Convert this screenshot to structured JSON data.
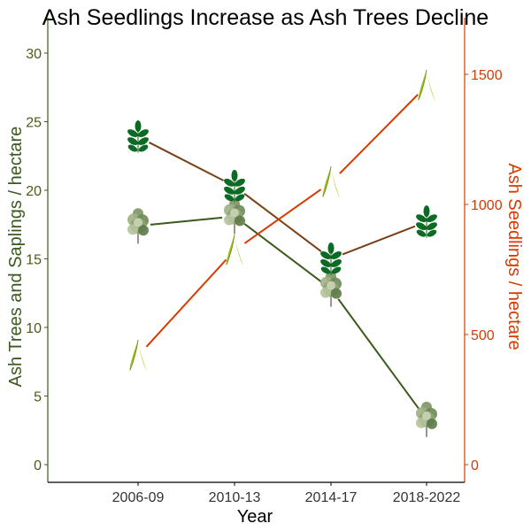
{
  "chart_data": {
    "type": "line",
    "title": "Ash Seedlings Increase as Ash Trees Decline",
    "xlabel": "Year",
    "ylabel_left": "Ash Trees and Saplings / hectare",
    "ylabel_right": "Ash Seedlings / hectare",
    "categories": [
      "2006-09",
      "2010-13",
      "2014-17",
      "2018-2022"
    ],
    "ylim_left": [
      0,
      30
    ],
    "yticks_left": [
      0,
      5,
      10,
      15,
      20,
      25,
      30
    ],
    "ylim_right": [
      0,
      1500
    ],
    "yticks_right": [
      0,
      500,
      1000,
      1500
    ],
    "grid": false,
    "series": [
      {
        "key": "trees",
        "axis": "left",
        "marker": "tree-icon",
        "color": "#3b5a1c",
        "values": [
          17.4,
          18.1,
          12.8,
          3.3
        ]
      },
      {
        "key": "saplings",
        "axis": "left",
        "marker": "ash-leaf-icon",
        "color": "#7b3f14",
        "values": [
          23.9,
          20.3,
          15.0,
          17.7
        ]
      },
      {
        "key": "seedlings",
        "axis": "right",
        "marker": "seedling-icon",
        "color": "#d83a00",
        "values": [
          418,
          823,
          1085,
          1456
        ]
      }
    ],
    "colors": {
      "left_axis": "#3b5a1c",
      "left_text": "#4d5a12",
      "right_axis": "#d83a00"
    }
  }
}
